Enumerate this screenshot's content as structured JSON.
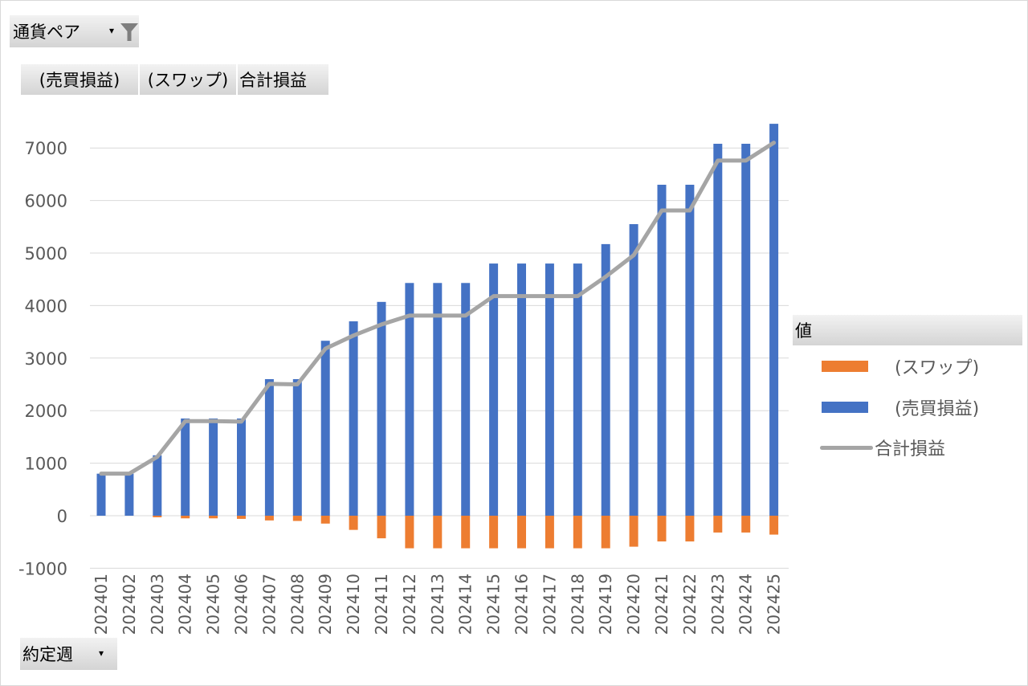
{
  "filter_field": {
    "label": "通貨ペア",
    "dropdown_icon": "dropdown-arrow-icon",
    "filter_icon": "funnel-icon"
  },
  "value_fields": [
    "(売買損益)",
    "(スワップ)",
    "合計損益"
  ],
  "axis_field": {
    "label": "約定週",
    "dropdown_icon": "dropdown-arrow-icon"
  },
  "legend": {
    "header": "値",
    "items": [
      {
        "label": "(スワップ)",
        "color": "#ed7d31",
        "kind": "bar"
      },
      {
        "label": "(売買損益)",
        "color": "#4472c4",
        "kind": "bar"
      },
      {
        "label": "合計損益",
        "color": "#a5a5a5",
        "kind": "line"
      }
    ]
  },
  "chart_data": {
    "type": "bar",
    "stacked": true,
    "title": "",
    "xlabel": "",
    "ylabel": "",
    "ylim": [
      -1000,
      7000
    ],
    "yticks": [
      -1000,
      0,
      1000,
      2000,
      3000,
      4000,
      5000,
      6000,
      7000
    ],
    "grid": true,
    "legend_position": "right",
    "categories": [
      "202401",
      "202402",
      "202403",
      "202404",
      "202405",
      "202406",
      "202407",
      "202408",
      "202409",
      "202410",
      "202411",
      "202412",
      "202413",
      "202414",
      "202415",
      "202416",
      "202417",
      "202418",
      "202419",
      "202420",
      "202421",
      "202422",
      "202423",
      "202424",
      "202425"
    ],
    "series": [
      {
        "name": "(売買損益)",
        "type": "bar",
        "color": "#4472c4",
        "values": [
          800,
          800,
          1150,
          1850,
          1850,
          1850,
          2600,
          2600,
          3330,
          3700,
          4070,
          4430,
          4430,
          4430,
          4800,
          4800,
          4800,
          4800,
          5170,
          5550,
          6300,
          6300,
          7080,
          7080,
          7460
        ]
      },
      {
        "name": "(スワップ)",
        "type": "bar",
        "color": "#ed7d31",
        "values": [
          0,
          0,
          -30,
          -50,
          -50,
          -60,
          -90,
          -100,
          -150,
          -270,
          -430,
          -620,
          -620,
          -620,
          -620,
          -620,
          -620,
          -620,
          -620,
          -590,
          -490,
          -490,
          -320,
          -320,
          -360
        ]
      },
      {
        "name": "合計損益",
        "type": "line",
        "color": "#a5a5a5",
        "values": [
          800,
          800,
          1120,
          1800,
          1800,
          1790,
          2510,
          2500,
          3180,
          3430,
          3640,
          3810,
          3810,
          3810,
          4180,
          4180,
          4180,
          4180,
          4550,
          4960,
          5810,
          5810,
          6760,
          6760,
          7100
        ]
      }
    ]
  }
}
